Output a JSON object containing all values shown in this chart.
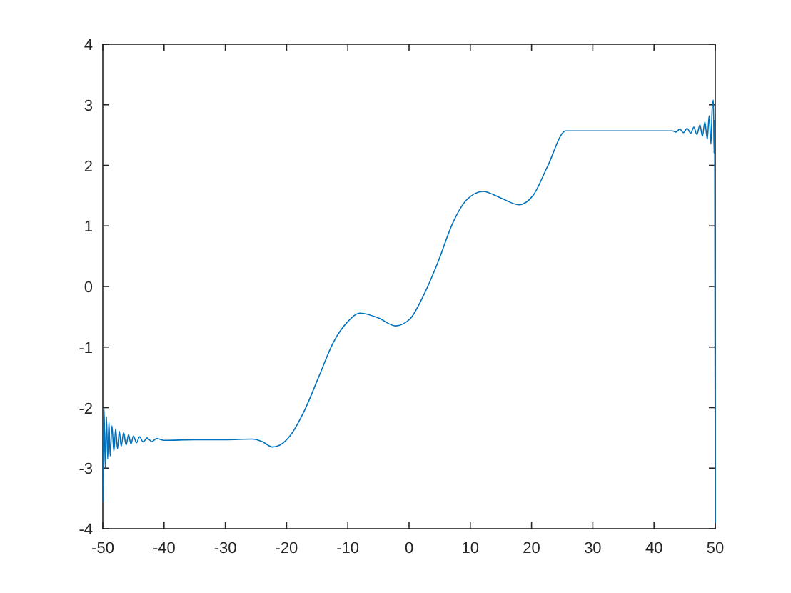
{
  "chart_data": {
    "type": "line",
    "x": [
      -50,
      -49.8,
      -49.6,
      -49.4,
      -49.2,
      -49,
      -48.8,
      -48.5,
      -48.2,
      -47.9,
      -47.6,
      -47.3,
      -47,
      -46.6,
      -46.2,
      -45.8,
      -45.4,
      -45,
      -44.5,
      -44,
      -43.4,
      -42.8,
      -42,
      -41.2,
      -40,
      -35,
      -30,
      -25.6,
      -24,
      -22.3,
      -20.8,
      -19.4,
      -17,
      -14.7,
      -12.4,
      -10,
      -8,
      -5,
      -2.2,
      0.1,
      2.4,
      4.75,
      7.1,
      9.4,
      12.1,
      14.8,
      17.95,
      20.3,
      22.6,
      25.6,
      30,
      35,
      40,
      43,
      43.6,
      44.2,
      44.8,
      45.4,
      46,
      46.5,
      47,
      47.5,
      47.9,
      48.3,
      48.7,
      49,
      49.3,
      49.5,
      49.7,
      49.8,
      49.9,
      50
    ],
    "values": [
      -3.55,
      -2.0,
      -3.0,
      -2.15,
      -2.85,
      -2.23,
      -2.8,
      -2.3,
      -2.72,
      -2.35,
      -2.68,
      -2.39,
      -2.64,
      -2.41,
      -2.62,
      -2.45,
      -2.6,
      -2.47,
      -2.58,
      -2.48,
      -2.57,
      -2.5,
      -2.56,
      -2.51,
      -2.54,
      -2.53,
      -2.53,
      -2.52,
      -2.56,
      -2.65,
      -2.6,
      -2.46,
      -2.03,
      -1.48,
      -0.93,
      -0.58,
      -0.44,
      -0.52,
      -0.65,
      -0.54,
      -0.14,
      0.41,
      1.04,
      1.43,
      1.57,
      1.47,
      1.35,
      1.51,
      1.98,
      2.57,
      2.57,
      2.57,
      2.57,
      2.57,
      2.55,
      2.6,
      2.54,
      2.61,
      2.53,
      2.63,
      2.51,
      2.67,
      2.48,
      2.72,
      2.43,
      2.82,
      2.35,
      2.95,
      3.08,
      2.2,
      2.75,
      -3.9
    ],
    "color": "#0072bd",
    "xlim": [
      -50,
      50
    ],
    "ylim": [
      -4,
      4
    ],
    "xticks": [
      -50,
      -40,
      -30,
      -20,
      -10,
      0,
      10,
      20,
      30,
      40,
      50
    ],
    "yticks": [
      -4,
      -3,
      -2,
      -1,
      0,
      1,
      2,
      3,
      4
    ]
  }
}
